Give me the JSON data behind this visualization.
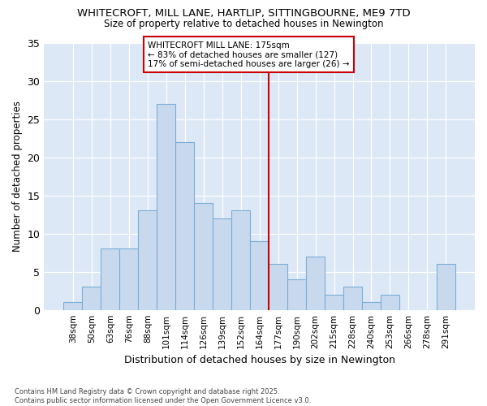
{
  "title": "WHITECROFT, MILL LANE, HARTLIP, SITTINGBOURNE, ME9 7TD",
  "subtitle": "Size of property relative to detached houses in Newington",
  "xlabel": "Distribution of detached houses by size in Newington",
  "ylabel": "Number of detached properties",
  "categories": [
    "38sqm",
    "50sqm",
    "63sqm",
    "76sqm",
    "88sqm",
    "101sqm",
    "114sqm",
    "126sqm",
    "139sqm",
    "152sqm",
    "164sqm",
    "177sqm",
    "190sqm",
    "202sqm",
    "215sqm",
    "228sqm",
    "240sqm",
    "253sqm",
    "266sqm",
    "278sqm",
    "291sqm"
  ],
  "values": [
    1,
    3,
    8,
    8,
    13,
    27,
    22,
    14,
    12,
    13,
    9,
    6,
    4,
    7,
    2,
    3,
    1,
    2,
    0,
    0,
    6
  ],
  "bar_color": "#c8d9ee",
  "bar_edge_color": "#7aaed6",
  "highlight_index": 11,
  "highlight_color": "#cc0000",
  "annotation_title": "WHITECROFT MILL LANE: 175sqm",
  "annotation_line1": "← 83% of detached houses are smaller (127)",
  "annotation_line2": "17% of semi-detached houses are larger (26) →",
  "footer_line1": "Contains HM Land Registry data © Crown copyright and database right 2025.",
  "footer_line2": "Contains public sector information licensed under the Open Government Licence v3.0.",
  "fig_bg_color": "#ffffff",
  "plot_bg_color": "#dce8f5",
  "ylim": [
    0,
    35
  ],
  "yticks": [
    0,
    5,
    10,
    15,
    20,
    25,
    30,
    35
  ]
}
